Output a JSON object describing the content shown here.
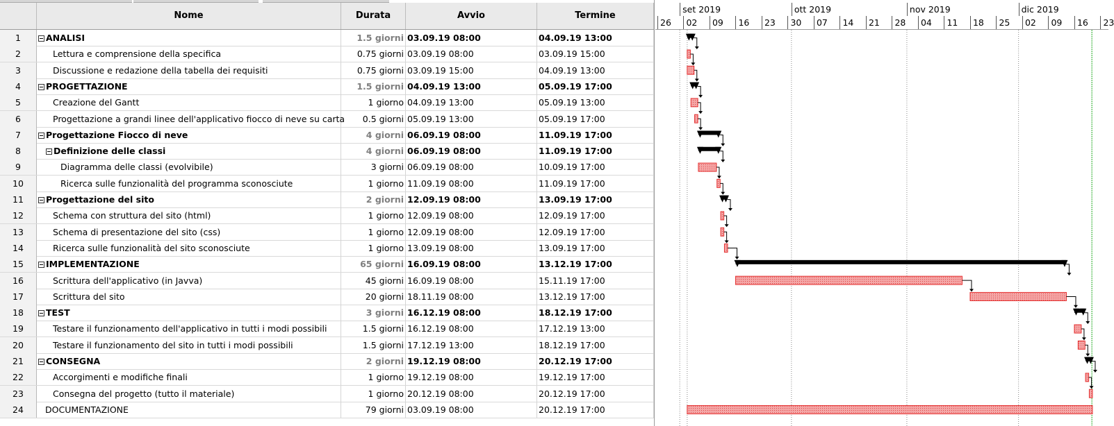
{
  "columns": {
    "num": "",
    "name": "Nome",
    "duration": "Durata",
    "start": "Avvio",
    "end": "Termine"
  },
  "tasks": [
    {
      "id": "1",
      "name": "ANALISI",
      "duration": "1.5 giorni",
      "start": "03.09.19 08:00",
      "end": "04.09.19 13:00",
      "level": 0,
      "summary": true,
      "bar": "summary",
      "bar_start": "2019-09-03",
      "bar_end": "2019-09-04"
    },
    {
      "id": "2",
      "name": "Lettura e comprensione della specifica",
      "duration": "0.75 giorni",
      "start": "03.09.19 08:00",
      "end": "03.09.19 15:00",
      "level": 1,
      "summary": false,
      "bar": "task",
      "bar_start": "2019-09-03",
      "bar_end": "2019-09-03"
    },
    {
      "id": "3",
      "name": "Discussione e redazione della tabella dei requisiti",
      "duration": "0.75 giorni",
      "start": "03.09.19 15:00",
      "end": "04.09.19 13:00",
      "level": 1,
      "summary": false,
      "bar": "task",
      "bar_start": "2019-09-03",
      "bar_end": "2019-09-04"
    },
    {
      "id": "4",
      "name": "PROGETTAZIONE",
      "duration": "1.5 giorni",
      "start": "04.09.19 13:00",
      "end": "05.09.19 17:00",
      "level": 0,
      "summary": true,
      "bar": "summary",
      "bar_start": "2019-09-04",
      "bar_end": "2019-09-05"
    },
    {
      "id": "5",
      "name": "Creazione del Gantt",
      "duration": "1 giorno",
      "start": "04.09.19 13:00",
      "end": "05.09.19 13:00",
      "level": 1,
      "summary": false,
      "bar": "task",
      "bar_start": "2019-09-04",
      "bar_end": "2019-09-05"
    },
    {
      "id": "6",
      "name": "Progettazione a grandi linee dell'applicativo fiocco di neve su carta",
      "duration": "0.5 giorni",
      "start": "05.09.19 13:00",
      "end": "05.09.19 17:00",
      "level": 1,
      "summary": false,
      "bar": "task",
      "bar_start": "2019-09-05",
      "bar_end": "2019-09-05"
    },
    {
      "id": "7",
      "name": "Progettazione Fiocco di neve",
      "duration": "4 giorni",
      "start": "06.09.19 08:00",
      "end": "11.09.19 17:00",
      "level": 0,
      "summary": true,
      "bar": "summary",
      "bar_start": "2019-09-06",
      "bar_end": "2019-09-11"
    },
    {
      "id": "8",
      "name": "Definizione delle classi",
      "duration": "4 giorni",
      "start": "06.09.19 08:00",
      "end": "11.09.19 17:00",
      "level": 1,
      "summary": true,
      "bar": "summary",
      "bar_start": "2019-09-06",
      "bar_end": "2019-09-11"
    },
    {
      "id": "9",
      "name": "Diagramma delle classi (evolvibile)",
      "duration": "3 giorni",
      "start": "06.09.19 08:00",
      "end": "10.09.19 17:00",
      "level": 2,
      "summary": false,
      "bar": "task",
      "bar_start": "2019-09-06",
      "bar_end": "2019-09-10"
    },
    {
      "id": "10",
      "name": "Ricerca sulle funzionalità del programma sconosciute",
      "duration": "1 giorno",
      "start": "11.09.19 08:00",
      "end": "11.09.19 17:00",
      "level": 2,
      "summary": false,
      "bar": "task",
      "bar_start": "2019-09-11",
      "bar_end": "2019-09-11"
    },
    {
      "id": "11",
      "name": "Progettazione del sito",
      "duration": "2 giorni",
      "start": "12.09.19 08:00",
      "end": "13.09.19 17:00",
      "level": 0,
      "summary": true,
      "bar": "summary",
      "bar_start": "2019-09-12",
      "bar_end": "2019-09-13"
    },
    {
      "id": "12",
      "name": "Schema con struttura del sito (html)",
      "duration": "1 giorno",
      "start": "12.09.19 08:00",
      "end": "12.09.19 17:00",
      "level": 1,
      "summary": false,
      "bar": "task",
      "bar_start": "2019-09-12",
      "bar_end": "2019-09-12"
    },
    {
      "id": "13",
      "name": "Schema di presentazione del sito (css)",
      "duration": "1 giorno",
      "start": "12.09.19 08:00",
      "end": "12.09.19 17:00",
      "level": 1,
      "summary": false,
      "bar": "task",
      "bar_start": "2019-09-12",
      "bar_end": "2019-09-12"
    },
    {
      "id": "14",
      "name": "Ricerca sulle funzionalità del sito sconosciute",
      "duration": "1 giorno",
      "start": "13.09.19 08:00",
      "end": "13.09.19 17:00",
      "level": 1,
      "summary": false,
      "bar": "task",
      "bar_start": "2019-09-13",
      "bar_end": "2019-09-13"
    },
    {
      "id": "15",
      "name": "IMPLEMENTAZIONE",
      "duration": "65 giorni",
      "start": "16.09.19 08:00",
      "end": "13.12.19 17:00",
      "level": 0,
      "summary": true,
      "bar": "summary",
      "bar_start": "2019-09-16",
      "bar_end": "2019-12-13"
    },
    {
      "id": "16",
      "name": "Scrittura dell'applicativo (in Javva)",
      "duration": "45 giorni",
      "start": "16.09.19 08:00",
      "end": "15.11.19 17:00",
      "level": 1,
      "summary": false,
      "bar": "task",
      "bar_start": "2019-09-16",
      "bar_end": "2019-11-15"
    },
    {
      "id": "17",
      "name": "Scrittura del sito",
      "duration": "20 giorni",
      "start": "18.11.19 08:00",
      "end": "13.12.19 17:00",
      "level": 1,
      "summary": false,
      "bar": "task",
      "bar_start": "2019-11-18",
      "bar_end": "2019-12-13"
    },
    {
      "id": "18",
      "name": "TEST",
      "duration": "3 giorni",
      "start": "16.12.19 08:00",
      "end": "18.12.19 17:00",
      "level": 0,
      "summary": true,
      "bar": "summary",
      "bar_start": "2019-12-16",
      "bar_end": "2019-12-18"
    },
    {
      "id": "19",
      "name": "Testare il funzionamento dell'applicativo in tutti i modi possibili",
      "duration": "1.5 giorni",
      "start": "16.12.19 08:00",
      "end": "17.12.19 13:00",
      "level": 1,
      "summary": false,
      "bar": "task",
      "bar_start": "2019-12-16",
      "bar_end": "2019-12-17"
    },
    {
      "id": "20",
      "name": "Testare il funzionamento del sito in tutti i modi possibili",
      "duration": "1.5 giorni",
      "start": "17.12.19 13:00",
      "end": "18.12.19 17:00",
      "level": 1,
      "summary": false,
      "bar": "task",
      "bar_start": "2019-12-17",
      "bar_end": "2019-12-18"
    },
    {
      "id": "21",
      "name": "CONSEGNA",
      "duration": "2 giorni",
      "start": "19.12.19 08:00",
      "end": "20.12.19 17:00",
      "level": 0,
      "summary": true,
      "bar": "summary",
      "bar_start": "2019-12-19",
      "bar_end": "2019-12-20"
    },
    {
      "id": "22",
      "name": "Accorgimenti e modifiche finali",
      "duration": "1 giorno",
      "start": "19.12.19 08:00",
      "end": "19.12.19 17:00",
      "level": 1,
      "summary": false,
      "bar": "task",
      "bar_start": "2019-12-19",
      "bar_end": "2019-12-19"
    },
    {
      "id": "23",
      "name": "Consegna del progetto (tutto il materiale)",
      "duration": "1 giorno",
      "start": "20.12.19 08:00",
      "end": "20.12.19 17:00",
      "level": 1,
      "summary": false,
      "bar": "task",
      "bar_start": "2019-12-20",
      "bar_end": "2019-12-20"
    },
    {
      "id": "24",
      "name": "DOCUMENTAZIONE",
      "duration": "79 giorni",
      "start": "03.09.19 08:00",
      "end": "20.12.19 17:00",
      "level": 0,
      "summary": false,
      "bar": "task",
      "bar_start": "2019-09-03",
      "bar_end": "2019-12-20"
    }
  ],
  "timeline": {
    "months": [
      {
        "label": "set 2019",
        "date": "2019-09-01"
      },
      {
        "label": "ott 2019",
        "date": "2019-10-01"
      },
      {
        "label": "nov 2019",
        "date": "2019-11-01"
      },
      {
        "label": "dic 2019",
        "date": "2019-12-01"
      }
    ],
    "weeks": [
      {
        "label": "26",
        "date": "2019-08-26"
      },
      {
        "label": "02",
        "date": "2019-09-02"
      },
      {
        "label": "09",
        "date": "2019-09-09"
      },
      {
        "label": "16",
        "date": "2019-09-16"
      },
      {
        "label": "23",
        "date": "2019-09-23"
      },
      {
        "label": "30",
        "date": "2019-09-30"
      },
      {
        "label": "07",
        "date": "2019-10-07"
      },
      {
        "label": "14",
        "date": "2019-10-14"
      },
      {
        "label": "21",
        "date": "2019-10-21"
      },
      {
        "label": "28",
        "date": "2019-10-28"
      },
      {
        "label": "04",
        "date": "2019-11-04"
      },
      {
        "label": "11",
        "date": "2019-11-11"
      },
      {
        "label": "18",
        "date": "2019-11-18"
      },
      {
        "label": "25",
        "date": "2019-11-25"
      },
      {
        "label": "02",
        "date": "2019-12-02"
      },
      {
        "label": "09",
        "date": "2019-12-09"
      },
      {
        "label": "16",
        "date": "2019-12-16"
      },
      {
        "label": "23",
        "date": "2019-12-23"
      }
    ],
    "today": "2019-12-20",
    "colors": {
      "task_fill": "#f4a6a6",
      "task_border": "#e53030",
      "summary": "#000000",
      "today_line": "#22aa22",
      "month_line": "#888888"
    }
  }
}
